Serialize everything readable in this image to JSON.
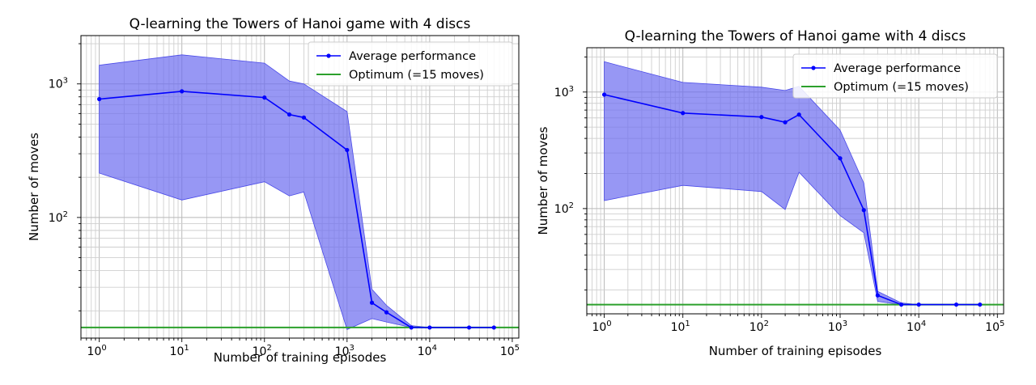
{
  "chart_data": [
    {
      "type": "line",
      "title": "Q-learning the Towers of Hanoi game with 4 discs",
      "xlabel": "Number of training episodes",
      "ylabel": "Number of moves",
      "xscale": "log",
      "yscale": "log",
      "xlim": [
        0.6,
        120000
      ],
      "ylim": [
        12.5,
        2300
      ],
      "grid": "major and minor",
      "legend_position": "top-right",
      "x_tick_labels": [
        {
          "value": 1,
          "base": "10",
          "exp": "0"
        },
        {
          "value": 10,
          "base": "10",
          "exp": "1"
        },
        {
          "value": 100,
          "base": "10",
          "exp": "2"
        },
        {
          "value": 1000,
          "base": "10",
          "exp": "3"
        },
        {
          "value": 10000,
          "base": "10",
          "exp": "4"
        },
        {
          "value": 100000,
          "base": "10",
          "exp": "5"
        }
      ],
      "y_tick_labels": [
        {
          "value": 100,
          "base": "10",
          "exp": "2"
        },
        {
          "value": 1000,
          "base": "10",
          "exp": "3"
        }
      ],
      "series": [
        {
          "name": "Average performance",
          "color": "#0000ff",
          "marker": "dot",
          "x": [
            1,
            10,
            100,
            200,
            300,
            1000,
            2000,
            3000,
            6000,
            10000,
            30000,
            60000
          ],
          "y": [
            770,
            880,
            790,
            590,
            560,
            320,
            23,
            19.5,
            15,
            15,
            15,
            15
          ],
          "band_upper": [
            1380,
            1650,
            1430,
            1050,
            1000,
            620,
            29,
            22,
            15.5,
            15,
            15,
            15
          ],
          "band_lower": [
            215,
            135,
            185,
            145,
            155,
            14.5,
            17.5,
            16.5,
            15,
            15,
            15,
            15
          ],
          "band_color": "#6f6ff0"
        },
        {
          "name": "Optimum (=15 moves)",
          "color": "#2ca02c",
          "y_constant": 15
        }
      ]
    },
    {
      "type": "line",
      "title": "Q-learning the Towers of Hanoi game with 4 discs",
      "xlabel": "Number of training episodes",
      "ylabel": "Number of moves",
      "xscale": "log",
      "yscale": "log",
      "xlim": [
        0.6,
        120000
      ],
      "ylim": [
        12.5,
        2400
      ],
      "grid": "major and minor",
      "legend_position": "top-right",
      "x_tick_labels": [
        {
          "value": 1,
          "base": "10",
          "exp": "0"
        },
        {
          "value": 10,
          "base": "10",
          "exp": "1"
        },
        {
          "value": 100,
          "base": "10",
          "exp": "2"
        },
        {
          "value": 1000,
          "base": "10",
          "exp": "3"
        },
        {
          "value": 10000,
          "base": "10",
          "exp": "4"
        },
        {
          "value": 100000,
          "base": "10",
          "exp": "5"
        }
      ],
      "y_tick_labels": [
        {
          "value": 100,
          "base": "10",
          "exp": "2"
        },
        {
          "value": 1000,
          "base": "10",
          "exp": "3"
        }
      ],
      "series": [
        {
          "name": "Average performance",
          "color": "#0000ff",
          "marker": "dot",
          "x": [
            1,
            10,
            100,
            200,
            300,
            1000,
            2000,
            3000,
            6000,
            10000,
            30000,
            60000
          ],
          "y": [
            950,
            660,
            610,
            550,
            640,
            270,
            97,
            18,
            15,
            15,
            15,
            15
          ],
          "band_upper": [
            1820,
            1210,
            1100,
            1030,
            1120,
            470,
            165,
            19.5,
            15.5,
            15,
            15,
            15
          ],
          "band_lower": [
            117,
            158,
            140,
            98,
            205,
            87,
            62,
            16,
            15,
            15,
            15,
            15
          ],
          "band_color": "#6f6ff0"
        },
        {
          "name": "Optimum (=15 moves)",
          "color": "#2ca02c",
          "y_constant": 15
        }
      ]
    }
  ]
}
